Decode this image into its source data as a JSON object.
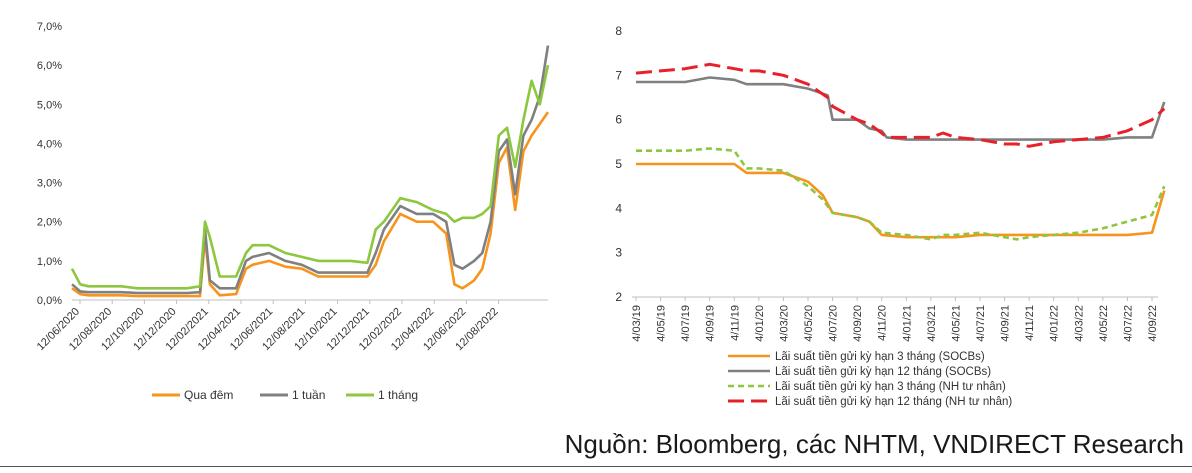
{
  "source": "Nguồn: Bloomberg, các NHTM, VNDIRECT Research",
  "colors": {
    "orange": "#F7941D",
    "gray": "#808080",
    "green": "#8DC63F",
    "red": "#E8202A",
    "lightgreen": "#8DC63F",
    "grid": "#d9d9d9",
    "axis": "#bfbfbf"
  },
  "chart_data": [
    {
      "type": "line",
      "y_ticks": [
        "0,0%",
        "1,0%",
        "2,0%",
        "3,0%",
        "4,0%",
        "5,0%",
        "6,0%",
        "7,0%"
      ],
      "ylim": [
        0,
        7
      ],
      "x_ticks": [
        "12/06/2020",
        "12/08/2020",
        "12/10/2020",
        "12/12/2020",
        "12/02/2021",
        "12/04/2021",
        "12/06/2021",
        "12/08/2021",
        "12/10/2021",
        "12/12/2021",
        "12/02/2022",
        "12/04/2022",
        "12/06/2022",
        "12/08/2022"
      ],
      "legend": "bottom",
      "x_index_range": [
        0,
        29
      ],
      "series": [
        {
          "name": "Qua đêm",
          "color": "#F7941D",
          "points": [
            [
              0,
              0.3
            ],
            [
              0.5,
              0.15
            ],
            [
              1,
              0.12
            ],
            [
              2,
              0.12
            ],
            [
              3,
              0.12
            ],
            [
              4,
              0.1
            ],
            [
              5,
              0.1
            ],
            [
              6,
              0.1
            ],
            [
              7,
              0.1
            ],
            [
              7.8,
              0.1
            ],
            [
              8.1,
              1.6
            ],
            [
              8.4,
              0.4
            ],
            [
              9,
              0.12
            ],
            [
              10,
              0.15
            ],
            [
              10.6,
              0.8
            ],
            [
              11,
              0.9
            ],
            [
              12,
              1.0
            ],
            [
              13,
              0.85
            ],
            [
              14,
              0.8
            ],
            [
              15,
              0.6
            ],
            [
              16,
              0.6
            ],
            [
              17,
              0.6
            ],
            [
              18,
              0.6
            ],
            [
              18.5,
              0.9
            ],
            [
              19,
              1.5
            ],
            [
              20,
              2.2
            ],
            [
              21,
              2.0
            ],
            [
              22,
              2.0
            ],
            [
              22.8,
              1.7
            ],
            [
              23.3,
              0.4
            ],
            [
              23.8,
              0.3
            ],
            [
              24.5,
              0.5
            ],
            [
              25,
              0.8
            ],
            [
              25.5,
              1.7
            ],
            [
              26,
              3.5
            ],
            [
              26.5,
              3.9
            ],
            [
              27,
              2.3
            ],
            [
              27.5,
              3.8
            ],
            [
              28,
              4.2
            ],
            [
              28.5,
              4.5
            ],
            [
              29,
              4.8
            ]
          ]
        },
        {
          "name": "1 tuần",
          "color": "#808080",
          "points": [
            [
              0,
              0.4
            ],
            [
              0.5,
              0.22
            ],
            [
              1,
              0.2
            ],
            [
              2,
              0.2
            ],
            [
              3,
              0.2
            ],
            [
              4,
              0.18
            ],
            [
              5,
              0.18
            ],
            [
              6,
              0.18
            ],
            [
              7,
              0.18
            ],
            [
              7.8,
              0.2
            ],
            [
              8.1,
              1.8
            ],
            [
              8.4,
              0.5
            ],
            [
              9,
              0.3
            ],
            [
              10,
              0.3
            ],
            [
              10.6,
              1.0
            ],
            [
              11,
              1.1
            ],
            [
              12,
              1.2
            ],
            [
              13,
              1.0
            ],
            [
              14,
              0.9
            ],
            [
              15,
              0.7
            ],
            [
              16,
              0.7
            ],
            [
              17,
              0.7
            ],
            [
              18,
              0.7
            ],
            [
              18.5,
              1.2
            ],
            [
              19,
              1.8
            ],
            [
              20,
              2.4
            ],
            [
              21,
              2.2
            ],
            [
              22,
              2.2
            ],
            [
              22.8,
              2.0
            ],
            [
              23.3,
              0.9
            ],
            [
              23.8,
              0.8
            ],
            [
              24.5,
              1.0
            ],
            [
              25,
              1.2
            ],
            [
              25.5,
              2.0
            ],
            [
              26,
              3.8
            ],
            [
              26.5,
              4.1
            ],
            [
              27,
              2.7
            ],
            [
              27.5,
              4.2
            ],
            [
              28,
              4.6
            ],
            [
              28.5,
              5.2
            ],
            [
              29,
              6.5
            ]
          ]
        },
        {
          "name": "1 tháng",
          "color": "#8DC63F",
          "points": [
            [
              0,
              0.8
            ],
            [
              0.5,
              0.4
            ],
            [
              1,
              0.35
            ],
            [
              2,
              0.35
            ],
            [
              3,
              0.35
            ],
            [
              4,
              0.3
            ],
            [
              5,
              0.3
            ],
            [
              6,
              0.3
            ],
            [
              7,
              0.3
            ],
            [
              7.8,
              0.35
            ],
            [
              8.1,
              2.0
            ],
            [
              8.4,
              1.6
            ],
            [
              9,
              0.6
            ],
            [
              10,
              0.6
            ],
            [
              10.6,
              1.2
            ],
            [
              11,
              1.4
            ],
            [
              12,
              1.4
            ],
            [
              13,
              1.2
            ],
            [
              14,
              1.1
            ],
            [
              15,
              1.0
            ],
            [
              16,
              1.0
            ],
            [
              17,
              1.0
            ],
            [
              18,
              0.95
            ],
            [
              18.5,
              1.8
            ],
            [
              19,
              2.0
            ],
            [
              20,
              2.6
            ],
            [
              21,
              2.5
            ],
            [
              22,
              2.3
            ],
            [
              22.8,
              2.2
            ],
            [
              23.3,
              2.0
            ],
            [
              23.8,
              2.1
            ],
            [
              24.5,
              2.1
            ],
            [
              25,
              2.2
            ],
            [
              25.5,
              2.4
            ],
            [
              26,
              4.2
            ],
            [
              26.5,
              4.4
            ],
            [
              27,
              3.4
            ],
            [
              27.5,
              4.6
            ],
            [
              28,
              5.6
            ],
            [
              28.5,
              5.0
            ],
            [
              29,
              6.0
            ]
          ]
        }
      ]
    },
    {
      "type": "line",
      "y_ticks": [
        "2",
        "3",
        "4",
        "5",
        "6",
        "7",
        "8"
      ],
      "ylim": [
        2,
        8
      ],
      "x_ticks": [
        "4/03/19",
        "4/05/19",
        "4/07/19",
        "4/09/19",
        "4/11/19",
        "4/01/20",
        "4/03/20",
        "4/05/20",
        "4/07/20",
        "4/09/20",
        "4/11/20",
        "4/01/21",
        "4/03/21",
        "4/05/21",
        "4/07/21",
        "4/09/21",
        "4/11/21",
        "4/01/22",
        "4/03/22",
        "4/05/22",
        "4/07/22",
        "4/09/22"
      ],
      "legend": "bottom",
      "series": [
        {
          "name": "Lãi suất tiền gửi kỳ hạn 3 tháng (SOCBs)",
          "color": "#F7941D",
          "dash": "solid",
          "points": [
            [
              0,
              5.0
            ],
            [
              1,
              5.0
            ],
            [
              2,
              5.0
            ],
            [
              3,
              5.0
            ],
            [
              4,
              5.0
            ],
            [
              4.5,
              4.8
            ],
            [
              5,
              4.8
            ],
            [
              6,
              4.8
            ],
            [
              7,
              4.6
            ],
            [
              7.6,
              4.3
            ],
            [
              8,
              3.9
            ],
            [
              8.5,
              3.85
            ],
            [
              9,
              3.8
            ],
            [
              9.5,
              3.7
            ],
            [
              10,
              3.4
            ],
            [
              11,
              3.35
            ],
            [
              12,
              3.35
            ],
            [
              13,
              3.35
            ],
            [
              14,
              3.4
            ],
            [
              15,
              3.4
            ],
            [
              16,
              3.4
            ],
            [
              17,
              3.4
            ],
            [
              18,
              3.4
            ],
            [
              19,
              3.4
            ],
            [
              20,
              3.4
            ],
            [
              21,
              3.45
            ],
            [
              21.5,
              4.4
            ]
          ]
        },
        {
          "name": "Lãi suất tiền gửi kỳ hạn 12 tháng (SOCBs)",
          "color": "#808080",
          "dash": "solid",
          "points": [
            [
              0,
              6.85
            ],
            [
              1,
              6.85
            ],
            [
              2,
              6.85
            ],
            [
              3,
              6.95
            ],
            [
              4,
              6.9
            ],
            [
              4.5,
              6.8
            ],
            [
              5,
              6.8
            ],
            [
              6,
              6.8
            ],
            [
              7,
              6.7
            ],
            [
              7.8,
              6.55
            ],
            [
              8,
              6.0
            ],
            [
              9,
              6.0
            ],
            [
              9.5,
              5.8
            ],
            [
              10,
              5.75
            ],
            [
              10.2,
              5.6
            ],
            [
              11,
              5.55
            ],
            [
              12,
              5.55
            ],
            [
              13,
              5.55
            ],
            [
              14,
              5.55
            ],
            [
              15,
              5.55
            ],
            [
              16,
              5.55
            ],
            [
              17,
              5.55
            ],
            [
              18,
              5.55
            ],
            [
              19,
              5.55
            ],
            [
              20,
              5.6
            ],
            [
              21,
              5.6
            ],
            [
              21.5,
              6.4
            ]
          ]
        },
        {
          "name": "Lãi suất tiền gửi kỳ hạn 3 tháng (NH tư nhân)",
          "color": "#8DC63F",
          "dash": "dash",
          "points": [
            [
              0,
              5.3
            ],
            [
              1,
              5.3
            ],
            [
              2,
              5.3
            ],
            [
              3,
              5.35
            ],
            [
              4,
              5.3
            ],
            [
              4.5,
              4.9
            ],
            [
              5,
              4.9
            ],
            [
              6,
              4.85
            ],
            [
              7,
              4.5
            ],
            [
              7.6,
              4.2
            ],
            [
              8,
              3.9
            ],
            [
              9,
              3.8
            ],
            [
              9.5,
              3.7
            ],
            [
              10,
              3.45
            ],
            [
              11,
              3.4
            ],
            [
              12,
              3.3
            ],
            [
              12.5,
              3.4
            ],
            [
              13,
              3.4
            ],
            [
              14,
              3.45
            ],
            [
              15,
              3.35
            ],
            [
              15.5,
              3.3
            ],
            [
              16,
              3.35
            ],
            [
              17,
              3.4
            ],
            [
              18,
              3.45
            ],
            [
              19,
              3.55
            ],
            [
              20,
              3.7
            ],
            [
              21,
              3.85
            ],
            [
              21.5,
              4.5
            ]
          ]
        },
        {
          "name": "Lãi suất tiền gửi kỳ hạn 12 tháng (NH tư nhân)",
          "color": "#E8202A",
          "dash": "longdash",
          "points": [
            [
              0,
              7.05
            ],
            [
              1,
              7.1
            ],
            [
              2,
              7.15
            ],
            [
              3,
              7.25
            ],
            [
              4,
              7.15
            ],
            [
              4.5,
              7.1
            ],
            [
              5,
              7.1
            ],
            [
              6,
              7.0
            ],
            [
              7,
              6.8
            ],
            [
              7.8,
              6.5
            ],
            [
              8,
              6.3
            ],
            [
              9,
              6.0
            ],
            [
              9.5,
              5.9
            ],
            [
              10,
              5.7
            ],
            [
              10.2,
              5.6
            ],
            [
              11,
              5.6
            ],
            [
              12,
              5.6
            ],
            [
              12.5,
              5.7
            ],
            [
              13,
              5.6
            ],
            [
              14,
              5.55
            ],
            [
              15,
              5.45
            ],
            [
              15.5,
              5.45
            ],
            [
              16,
              5.4
            ],
            [
              17,
              5.5
            ],
            [
              18,
              5.55
            ],
            [
              19,
              5.6
            ],
            [
              20,
              5.75
            ],
            [
              21,
              6.0
            ],
            [
              21.5,
              6.25
            ]
          ]
        }
      ]
    }
  ]
}
